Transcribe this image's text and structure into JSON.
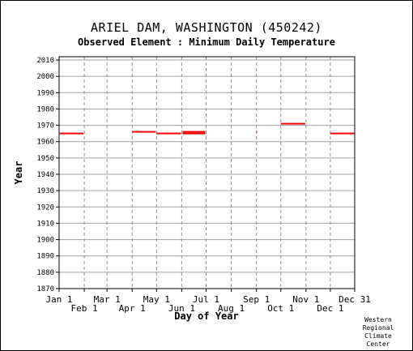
{
  "chart_data": {
    "type": "scatter",
    "title": "ARIEL DAM, WASHINGTON   (450242)",
    "subtitle": "Observed Element : Minimum Daily Temperature",
    "xlabel": "Day of Year",
    "ylabel": "Year",
    "xlim": [
      1,
      365
    ],
    "ylim": [
      1870,
      2012
    ],
    "y_ticks": [
      1870,
      1880,
      1890,
      1900,
      1910,
      1920,
      1930,
      1940,
      1950,
      1960,
      1970,
      1980,
      1990,
      2000,
      2010
    ],
    "x_ticks": [
      {
        "label": "Jan 1",
        "day": 1,
        "row": "upper"
      },
      {
        "label": "Feb 1",
        "day": 32,
        "row": "lower"
      },
      {
        "label": "Mar 1",
        "day": 60,
        "row": "upper"
      },
      {
        "label": "Apr 1",
        "day": 91,
        "row": "lower"
      },
      {
        "label": "May 1",
        "day": 121,
        "row": "upper"
      },
      {
        "label": "Jun 1",
        "day": 152,
        "row": "lower"
      },
      {
        "label": "Jul 1",
        "day": 182,
        "row": "upper"
      },
      {
        "label": "Aug 1",
        "day": 213,
        "row": "lower"
      },
      {
        "label": "Sep 1",
        "day": 244,
        "row": "upper"
      },
      {
        "label": "Oct 1",
        "day": 274,
        "row": "lower"
      },
      {
        "label": "Nov 1",
        "day": 305,
        "row": "upper"
      },
      {
        "label": "Dec 1",
        "day": 335,
        "row": "lower"
      },
      {
        "label": "Dec 31",
        "day": 365,
        "row": "upper"
      }
    ],
    "grid": true,
    "color": "#ff0000",
    "segments": [
      {
        "year": 1965,
        "start_day": 1,
        "end_day": 31
      },
      {
        "year": 1966,
        "start_day": 91,
        "end_day": 120
      },
      {
        "year": 1965,
        "start_day": 121,
        "end_day": 151
      },
      {
        "year": 1966,
        "start_day": 153,
        "end_day": 181
      },
      {
        "year": 1965,
        "start_day": 153,
        "end_day": 181
      },
      {
        "year": 1966,
        "start_day": 244,
        "end_day": 245
      },
      {
        "year": 1971,
        "start_day": 274,
        "end_day": 304
      },
      {
        "year": 1965,
        "start_day": 335,
        "end_day": 365
      }
    ]
  },
  "credit": "Western\nRegional\nClimate\nCenter"
}
